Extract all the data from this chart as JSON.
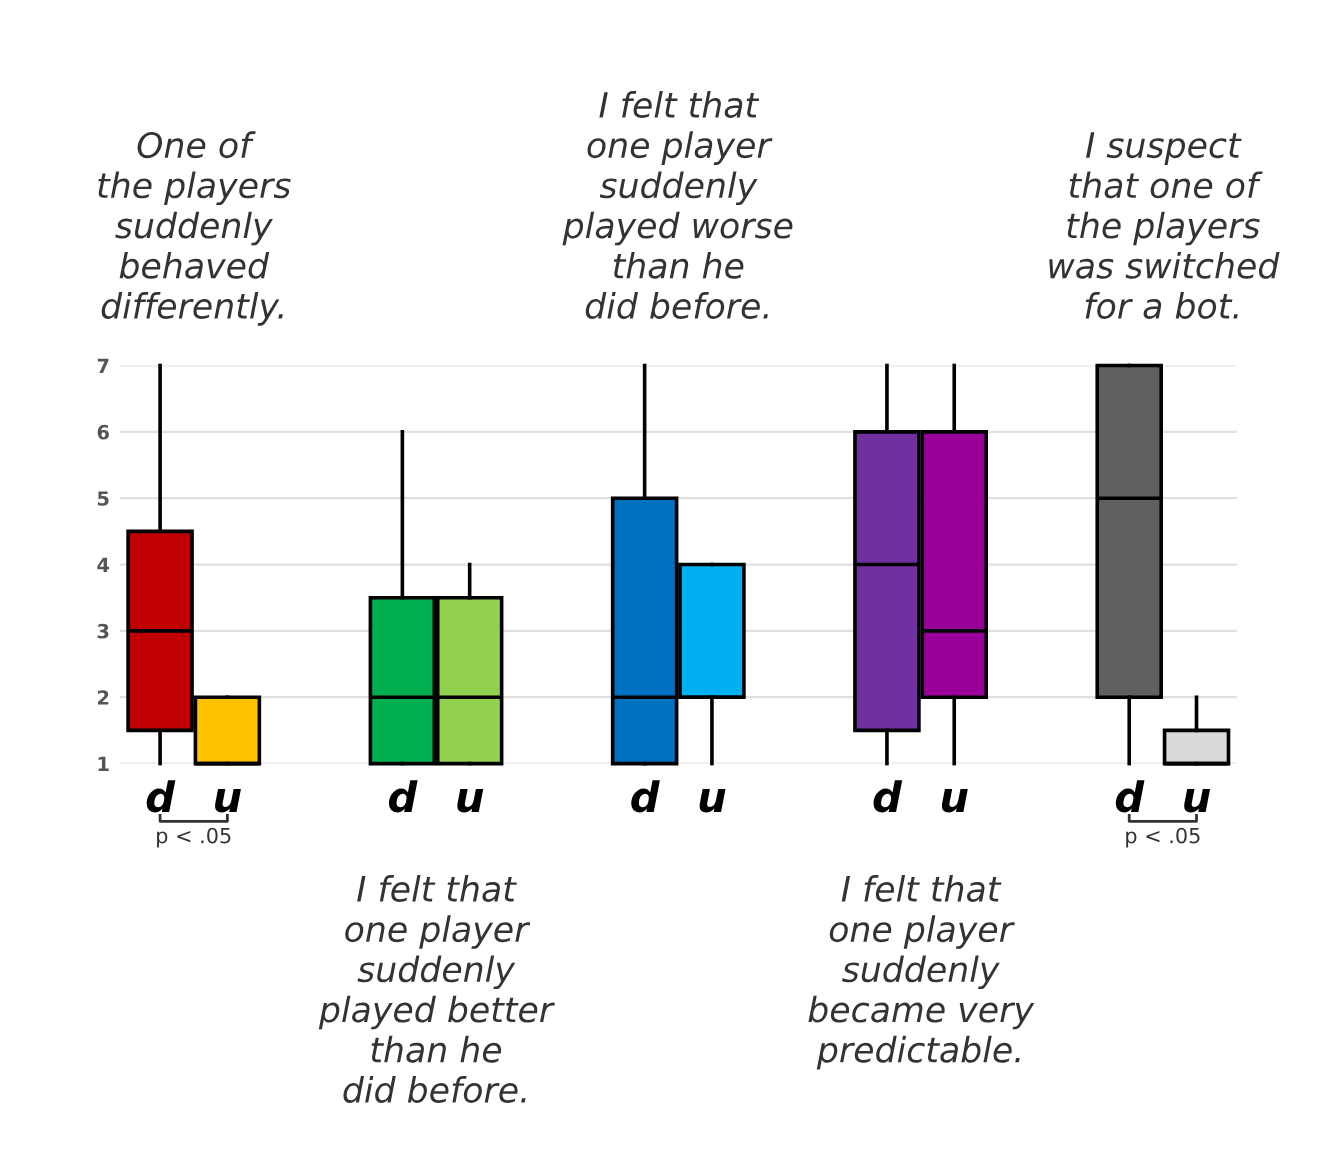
{
  "chart_data": {
    "type": "box",
    "categories": [
      "d",
      "u",
      "d",
      "u",
      "d",
      "u",
      "d",
      "u",
      "d",
      "u"
    ],
    "colors": [
      "#c00000",
      "#ffc000",
      "#00b050",
      "#92d050",
      "#0070c0",
      "#00b0f0",
      "#7030a0",
      "#990099",
      "#606060",
      "#d9d9d9"
    ],
    "boxes": [
      {
        "low": 1,
        "q1": 1.5,
        "median": 3,
        "q3": 4.5,
        "high": 7
      },
      {
        "low": 1,
        "q1": 1,
        "median": 1,
        "q3": 2,
        "high": 2
      },
      {
        "low": 1,
        "q1": 1,
        "median": 2,
        "q3": 3.5,
        "high": 6
      },
      {
        "low": 1,
        "q1": 1,
        "median": 2,
        "q3": 3.5,
        "high": 4
      },
      {
        "low": 1,
        "q1": 1,
        "median": 2,
        "q3": 5,
        "high": 7
      },
      {
        "low": 1,
        "q1": 2,
        "median": 2,
        "q3": 4,
        "high": 4
      },
      {
        "low": 1,
        "q1": 1.5,
        "median": 4,
        "q3": 6,
        "high": 7
      },
      {
        "low": 1,
        "q1": 2,
        "median": 3,
        "q3": 6,
        "high": 7
      },
      {
        "low": 1,
        "q1": 2,
        "median": 5,
        "q3": 7,
        "high": 7
      },
      {
        "low": 1,
        "q1": 1,
        "median": 1,
        "q3": 1.5,
        "high": 2
      }
    ],
    "ylim": [
      1,
      7
    ],
    "yticks": [
      1,
      2,
      3,
      4,
      5,
      6,
      7
    ],
    "grid": "y",
    "annotations": [
      "One of\nthe players\nsuddenly\nbehaved\ndifferently.",
      "I felt that\none player\nsuddenly\nplayed better\nthan he\ndid before.",
      "I felt that\none player\nsuddenly\nplayed worse\nthan he\ndid before.",
      "I felt that\none player\nsuddenly\nbecame very\npredictable.",
      "I suspect\nthat one of\nthe players\nwas switched\nfor a bot.",
      "p < .05",
      "p < .05"
    ]
  }
}
